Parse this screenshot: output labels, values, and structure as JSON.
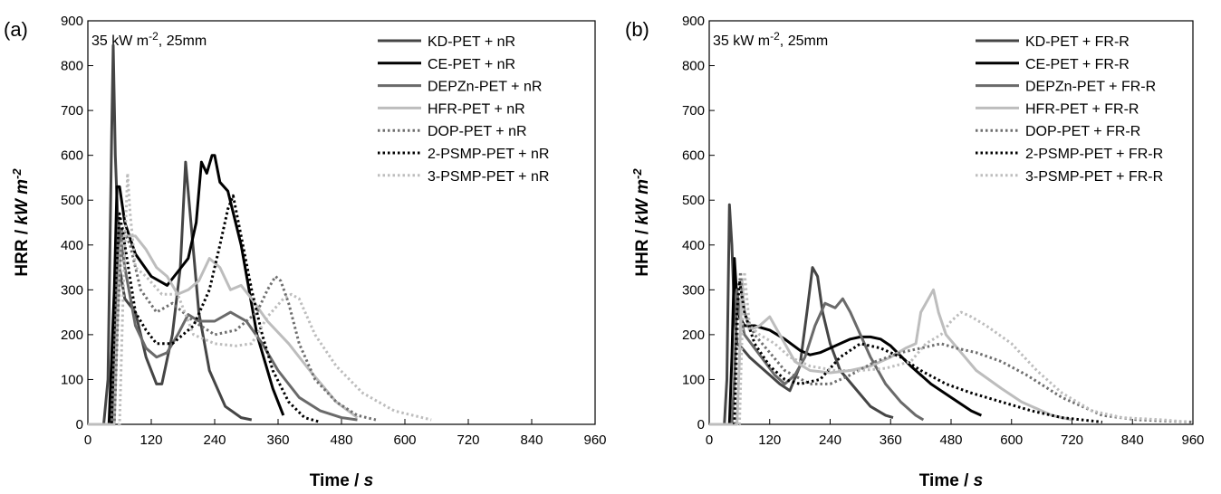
{
  "chart_data": [
    {
      "type": "line",
      "panel_label": "(a)",
      "annotation": {
        "text": "35 kW m",
        "sup": "-2",
        "rest": ", 25mm"
      },
      "x_label": {
        "text": "Time / ",
        "italic": "s"
      },
      "y_label": {
        "text": "HRR / ",
        "italic": "kW m",
        "sup": "-2"
      },
      "xlim": [
        0,
        960
      ],
      "xticks": [
        0,
        120,
        240,
        360,
        480,
        600,
        720,
        840,
        960
      ],
      "ylim": [
        0,
        900
      ],
      "yticks": [
        0,
        100,
        200,
        300,
        400,
        500,
        600,
        700,
        800,
        900
      ],
      "legend": "upper right",
      "series": [
        {
          "name": "KD-PET + nR",
          "color": "#454545",
          "style": "solid",
          "x": [
            0,
            30,
            38,
            45,
            48,
            52,
            60,
            70,
            90,
            110,
            130,
            140,
            160,
            175,
            185,
            195,
            210,
            230,
            260,
            290,
            310
          ],
          "values": [
            0,
            0,
            100,
            650,
            845,
            600,
            350,
            280,
            250,
            150,
            90,
            90,
            200,
            350,
            585,
            450,
            250,
            120,
            40,
            15,
            10
          ]
        },
        {
          "name": "CE-PET + nR",
          "color": "#000000",
          "style": "solid",
          "x": [
            0,
            40,
            50,
            55,
            60,
            70,
            90,
            120,
            150,
            170,
            190,
            205,
            215,
            225,
            235,
            240,
            250,
            265,
            290,
            320,
            350,
            370
          ],
          "values": [
            0,
            0,
            300,
            530,
            530,
            450,
            380,
            330,
            310,
            340,
            370,
            450,
            585,
            560,
            600,
            600,
            540,
            520,
            400,
            200,
            80,
            20
          ]
        },
        {
          "name": "DEPZn-PET + nR",
          "color": "#6a6a6a",
          "style": "solid",
          "x": [
            0,
            45,
            52,
            58,
            70,
            90,
            110,
            130,
            150,
            170,
            190,
            210,
            240,
            270,
            300,
            330,
            360,
            400,
            440,
            480,
            510
          ],
          "values": [
            0,
            0,
            200,
            450,
            350,
            220,
            170,
            150,
            160,
            200,
            245,
            230,
            230,
            250,
            230,
            180,
            120,
            60,
            30,
            15,
            10
          ]
        },
        {
          "name": "HFR-PET + nR",
          "color": "#bdbdbd",
          "style": "solid",
          "x": [
            0,
            50,
            55,
            62,
            70,
            90,
            110,
            130,
            150,
            170,
            190,
            210,
            230,
            250,
            270,
            290,
            310,
            340,
            380,
            420,
            470,
            510
          ],
          "values": [
            0,
            0,
            200,
            400,
            420,
            420,
            390,
            350,
            330,
            290,
            300,
            320,
            370,
            350,
            300,
            310,
            280,
            230,
            180,
            120,
            50,
            15
          ]
        },
        {
          "name": "DOP-PET + nR",
          "color": "#6f6f6f",
          "style": "dotted",
          "x": [
            0,
            50,
            57,
            65,
            80,
            100,
            130,
            160,
            200,
            240,
            280,
            300,
            320,
            340,
            355,
            365,
            380,
            400,
            430,
            470,
            510,
            545
          ],
          "values": [
            0,
            0,
            250,
            440,
            400,
            300,
            250,
            270,
            230,
            200,
            210,
            230,
            250,
            300,
            330,
            320,
            270,
            180,
            100,
            50,
            20,
            10
          ]
        },
        {
          "name": "2-PSMP-PET + nR",
          "color": "#000000",
          "style": "dotted",
          "x": [
            0,
            45,
            52,
            60,
            70,
            90,
            110,
            130,
            160,
            200,
            230,
            250,
            265,
            275,
            290,
            310,
            330,
            350,
            380,
            410,
            440
          ],
          "values": [
            0,
            0,
            300,
            470,
            400,
            250,
            210,
            180,
            180,
            220,
            300,
            400,
            480,
            510,
            420,
            300,
            200,
            120,
            50,
            15,
            5
          ]
        },
        {
          "name": "3-PSMP-PET + nR",
          "color": "#bdbdbd",
          "style": "dotted",
          "x": [
            0,
            60,
            67,
            75,
            80,
            90,
            110,
            140,
            170,
            200,
            240,
            280,
            310,
            340,
            370,
            385,
            400,
            430,
            470,
            520,
            580,
            650
          ],
          "values": [
            0,
            0,
            300,
            560,
            470,
            350,
            330,
            290,
            290,
            200,
            180,
            175,
            180,
            240,
            280,
            290,
            280,
            200,
            130,
            70,
            30,
            10
          ]
        }
      ]
    },
    {
      "type": "line",
      "panel_label": "(b)",
      "annotation": {
        "text": "35 kW m",
        "sup": "-2",
        "rest": ", 25mm"
      },
      "x_label": {
        "text": "Time / ",
        "italic": "s"
      },
      "y_label": {
        "text": "HHR / ",
        "italic": "kW m",
        "sup": "-2"
      },
      "xlim": [
        0,
        960
      ],
      "xticks": [
        0,
        120,
        240,
        360,
        480,
        600,
        720,
        840,
        960
      ],
      "ylim": [
        0,
        900
      ],
      "yticks": [
        0,
        100,
        200,
        300,
        400,
        500,
        600,
        700,
        800,
        900
      ],
      "legend": "upper right",
      "series": [
        {
          "name": "KD-PET + FR-R",
          "color": "#454545",
          "style": "solid",
          "x": [
            0,
            30,
            35,
            40,
            45,
            50,
            55,
            65,
            80,
            100,
            120,
            140,
            160,
            180,
            195,
            205,
            215,
            225,
            240,
            260,
            290,
            320,
            350,
            365
          ],
          "values": [
            0,
            0,
            100,
            490,
            400,
            250,
            180,
            170,
            150,
            130,
            110,
            90,
            75,
            130,
            260,
            350,
            330,
            250,
            180,
            120,
            80,
            40,
            20,
            15
          ]
        },
        {
          "name": "CE-PET + FR-R",
          "color": "#000000",
          "style": "solid",
          "x": [
            0,
            40,
            45,
            50,
            55,
            60,
            70,
            90,
            120,
            150,
            180,
            200,
            220,
            240,
            260,
            280,
            300,
            320,
            340,
            360,
            400,
            440,
            480,
            520,
            540
          ],
          "values": [
            0,
            0,
            150,
            370,
            280,
            240,
            220,
            220,
            210,
            190,
            165,
            155,
            160,
            170,
            180,
            190,
            195,
            195,
            190,
            175,
            130,
            90,
            60,
            30,
            20
          ]
        },
        {
          "name": "DEPZn-PET + FR-R",
          "color": "#6a6a6a",
          "style": "solid",
          "x": [
            0,
            45,
            50,
            55,
            60,
            70,
            90,
            110,
            130,
            150,
            170,
            190,
            210,
            230,
            250,
            265,
            280,
            300,
            320,
            350,
            380,
            410,
            425
          ],
          "values": [
            0,
            0,
            100,
            300,
            250,
            200,
            170,
            140,
            110,
            90,
            110,
            150,
            220,
            270,
            260,
            280,
            250,
            200,
            150,
            90,
            50,
            20,
            10
          ]
        },
        {
          "name": "HFR-PET + FR-R",
          "color": "#bdbdbd",
          "style": "solid",
          "x": [
            0,
            55,
            60,
            65,
            70,
            80,
            100,
            120,
            140,
            170,
            200,
            240,
            280,
            320,
            360,
            390,
            410,
            420,
            435,
            445,
            455,
            470,
            500,
            530,
            580,
            620,
            680,
            720
          ],
          "values": [
            0,
            0,
            150,
            320,
            250,
            210,
            220,
            240,
            200,
            140,
            120,
            115,
            120,
            130,
            150,
            170,
            180,
            250,
            280,
            300,
            250,
            200,
            160,
            120,
            80,
            50,
            20,
            10
          ]
        },
        {
          "name": "DOP-PET + FR-R",
          "color": "#6f6f6f",
          "style": "dotted",
          "x": [
            0,
            50,
            58,
            62,
            70,
            90,
            120,
            150,
            200,
            240,
            280,
            330,
            380,
            420,
            460,
            490,
            530,
            580,
            630,
            700,
            780,
            850,
            960
          ],
          "values": [
            0,
            0,
            280,
            340,
            250,
            200,
            160,
            120,
            90,
            90,
            110,
            140,
            160,
            170,
            180,
            170,
            160,
            140,
            110,
            60,
            20,
            10,
            5
          ]
        },
        {
          "name": "2-PSMP-PET + FR-R",
          "color": "#000000",
          "style": "dotted",
          "x": [
            0,
            50,
            55,
            60,
            70,
            90,
            120,
            150,
            180,
            220,
            260,
            300,
            340,
            380,
            420,
            470,
            520,
            580,
            640,
            700,
            780
          ],
          "values": [
            0,
            0,
            250,
            320,
            250,
            180,
            130,
            100,
            90,
            100,
            150,
            180,
            170,
            150,
            120,
            90,
            70,
            50,
            30,
            15,
            5
          ]
        },
        {
          "name": "3-PSMP-PET + FR-R",
          "color": "#bdbdbd",
          "style": "dotted",
          "x": [
            0,
            60,
            65,
            70,
            80,
            100,
            130,
            160,
            200,
            250,
            300,
            350,
            400,
            430,
            460,
            480,
            500,
            520,
            550,
            600,
            650,
            700,
            760,
            820,
            900,
            950
          ],
          "values": [
            0,
            0,
            200,
            340,
            220,
            200,
            180,
            150,
            130,
            120,
            120,
            125,
            140,
            180,
            200,
            230,
            250,
            240,
            220,
            180,
            120,
            70,
            30,
            15,
            10,
            5
          ]
        }
      ]
    }
  ]
}
